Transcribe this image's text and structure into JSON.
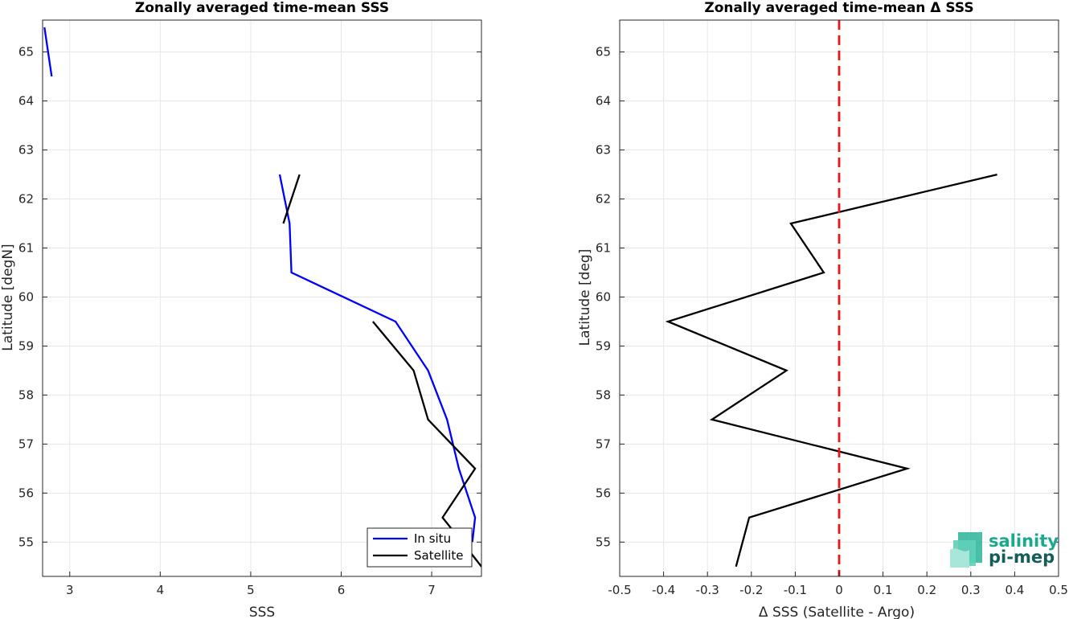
{
  "chart_data": [
    {
      "type": "line",
      "title": "Zonally averaged time-mean SSS",
      "xlabel": "SSS",
      "ylabel": "Latitude [degN]",
      "xlim": [
        2.7,
        7.55
      ],
      "ylim": [
        54.3,
        65.65
      ],
      "xticks": [
        3,
        4,
        5,
        6,
        7
      ],
      "yticks": [
        55,
        56,
        57,
        58,
        59,
        60,
        61,
        62,
        63,
        64,
        65
      ],
      "grid": true,
      "legend_position": "bottom-right",
      "series": [
        {
          "name": "In situ",
          "color": "#0000ff",
          "segments": [
            [
              {
                "x": 2.72,
                "y": 65.5
              },
              {
                "x": 2.8,
                "y": 64.5
              }
            ],
            [
              {
                "x": 5.32,
                "y": 62.5
              },
              {
                "x": 5.43,
                "y": 61.5
              },
              {
                "x": 5.45,
                "y": 60.5
              },
              {
                "x": 6.6,
                "y": 59.5
              },
              {
                "x": 6.96,
                "y": 58.5
              },
              {
                "x": 7.17,
                "y": 57.5
              },
              {
                "x": 7.3,
                "y": 56.5
              },
              {
                "x": 7.48,
                "y": 55.5
              },
              {
                "x": 7.45,
                "y": 55.0
              }
            ]
          ]
        },
        {
          "name": "Satellite",
          "color": "#000000",
          "segments": [
            [
              {
                "x": 5.54,
                "y": 62.5
              },
              {
                "x": 5.36,
                "y": 61.5
              }
            ],
            [
              {
                "x": 6.35,
                "y": 59.5
              },
              {
                "x": 6.8,
                "y": 58.5
              },
              {
                "x": 6.96,
                "y": 57.5
              },
              {
                "x": 7.48,
                "y": 56.5
              },
              {
                "x": 7.12,
                "y": 55.5
              },
              {
                "x": 7.38,
                "y": 54.9
              },
              {
                "x": 7.55,
                "y": 54.5
              }
            ]
          ]
        }
      ]
    },
    {
      "type": "line",
      "title": "Zonally averaged time-mean Δ SSS",
      "xlabel": "Δ SSS (Satellite - Argo)",
      "ylabel": "Latitude [deg]",
      "xlim": [
        -0.5,
        0.5
      ],
      "ylim": [
        54.3,
        65.65
      ],
      "xticks": [
        -0.5,
        -0.4,
        -0.3,
        -0.2,
        -0.1,
        0,
        0.1,
        0.2,
        0.3,
        0.4,
        0.5
      ],
      "yticks": [
        55,
        56,
        57,
        58,
        59,
        60,
        61,
        62,
        63,
        64,
        65
      ],
      "grid": true,
      "reference_line": {
        "x": 0,
        "color": "#e31a1c",
        "style": "dashed"
      },
      "series": [
        {
          "color": "#000000",
          "points": [
            {
              "x": 0.36,
              "y": 62.5
            },
            {
              "x": -0.11,
              "y": 61.5
            },
            {
              "x": -0.035,
              "y": 60.5
            },
            {
              "x": -0.39,
              "y": 59.5
            },
            {
              "x": -0.12,
              "y": 58.5
            },
            {
              "x": -0.29,
              "y": 57.5
            },
            {
              "x": 0.155,
              "y": 56.5
            },
            {
              "x": -0.205,
              "y": 55.5
            },
            {
              "x": -0.235,
              "y": 54.5
            }
          ]
        }
      ]
    }
  ],
  "logo": {
    "line1": "salinity",
    "line2": "pi-mep"
  }
}
